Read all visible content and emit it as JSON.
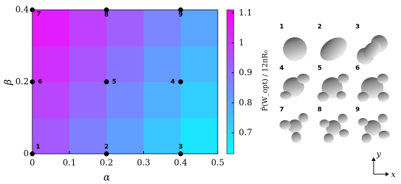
{
  "chart_data": {
    "type": "heatmap",
    "x_label": "α",
    "y_label": "β",
    "colorbar_label": "P̂(W_opt) / 12πR₀",
    "x_edges": [
      0,
      0.1,
      0.2,
      0.3,
      0.4,
      0.5
    ],
    "y_edges": [
      0,
      0.1,
      0.2,
      0.3,
      0.4
    ],
    "values": [
      [
        0.94,
        0.87,
        0.81,
        0.74,
        0.68
      ],
      [
        0.98,
        0.91,
        0.85,
        0.78,
        0.72
      ],
      [
        1.02,
        0.95,
        0.89,
        0.82,
        0.76
      ],
      [
        1.06,
        0.99,
        0.93,
        0.86,
        0.8
      ]
    ],
    "colormap": [
      "#00ffff",
      "#ff00ff"
    ],
    "zlim": [
      0.63,
      1.11
    ],
    "zticks": [
      0.7,
      0.8,
      0.9,
      1,
      1.1
    ],
    "xlim": [
      0,
      0.5
    ],
    "xticks": [
      0,
      0.1,
      0.2,
      0.3,
      0.4,
      0.5
    ],
    "ylim": [
      0,
      0.4
    ],
    "yticks": [
      0,
      0.2,
      0.4
    ],
    "points": {
      "x": [
        0,
        0.2,
        0.4,
        0.4,
        0.2,
        0,
        0,
        0.2,
        0.4
      ],
      "y": [
        0,
        0,
        0,
        0.2,
        0.2,
        0.2,
        0.4,
        0.4,
        0.4
      ],
      "labels": [
        "1",
        "2",
        "3",
        "4",
        "5",
        "6",
        "7",
        "8",
        "9"
      ],
      "color": "#000000"
    }
  },
  "shape_panel": {
    "labels": [
      "1",
      "2",
      "3",
      "4",
      "5",
      "6",
      "7",
      "8",
      "9"
    ],
    "y_axis": "y",
    "x_axis": "x"
  }
}
